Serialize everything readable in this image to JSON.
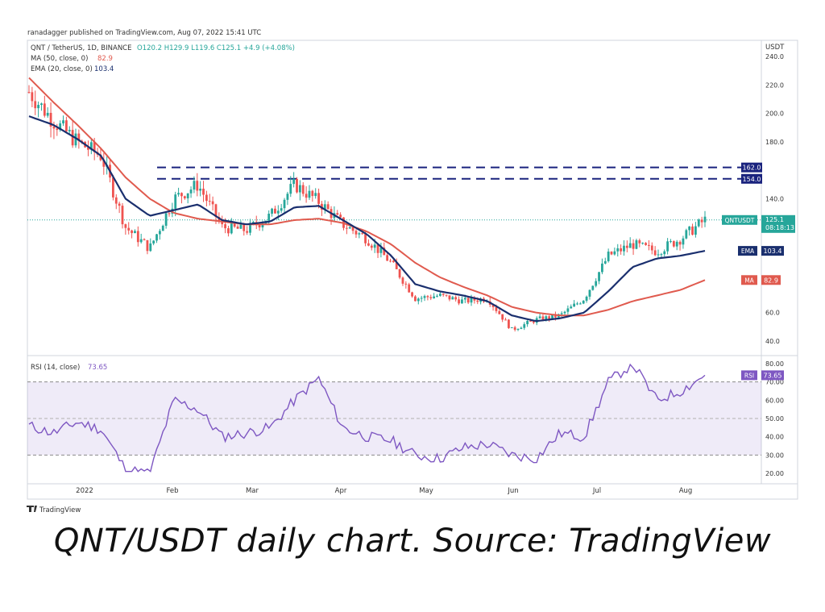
{
  "header": {
    "published": "ranadagger published on TradingView.com, Aug 07, 2022 15:41 UTC",
    "symbol_line": "QNT / TetherUS, 1D, BINANCE",
    "ohlc": "O120.2  H129.9  L119.6  C125.1  +4.9 (+4.08%)",
    "ma_legend_label": "MA (50, close, 0)",
    "ma_legend_value": "82.9",
    "ema_legend_label": "EMA (20, close, 0)",
    "ema_legend_value": "103.4",
    "rsi_legend_label": "RSI (14, close)",
    "rsi_legend_value": "73.65"
  },
  "axis": {
    "currency": "USDT",
    "price_ticks": [
      "240.0",
      "220.0",
      "200.0",
      "180.0",
      "140.0",
      "60.0",
      "40.0"
    ],
    "rsi_ticks": [
      "80.00",
      "70.00",
      "60.00",
      "50.00",
      "40.00",
      "30.00",
      "20.00"
    ],
    "months": [
      "2022",
      "Feb",
      "Mar",
      "Apr",
      "May",
      "Jun",
      "Jul",
      "Aug"
    ]
  },
  "badges": {
    "level_162": "162.0",
    "level_154": "154.0",
    "symbol": "QNTUSDT",
    "last": "125.1",
    "countdown": "08:18:13",
    "ema_tag": "EMA",
    "ema_value": "103.4",
    "ma_tag": "MA",
    "ma_value": "82.9",
    "rsi_tag": "RSI",
    "rsi_value": "73.65"
  },
  "logo_text": "TradingView",
  "caption": "QNT/USDT daily chart. Source: TradingView",
  "colors": {
    "up": "#26a69a",
    "down": "#ef5350",
    "ema": "#1a2f6e",
    "ma": "#e05a4e",
    "rsi": "#7e57c2",
    "level": "#1a237e"
  },
  "chart_data": {
    "type": "line",
    "title": "QNT / TetherUS, 1D, BINANCE",
    "xlabel": "",
    "ylabel": "USDT",
    "ylim": [
      30,
      243
    ],
    "x": [
      "Jan",
      "Jan",
      "Jan",
      "Jan",
      "Feb",
      "Feb",
      "Feb",
      "Feb",
      "Mar",
      "Mar",
      "Mar",
      "Mar",
      "Apr",
      "Apr",
      "Apr",
      "Apr",
      "May",
      "May",
      "May",
      "May",
      "Jun",
      "Jun",
      "Jun",
      "Jun",
      "Jul",
      "Jul",
      "Jul",
      "Jul",
      "Aug"
    ],
    "series": [
      {
        "name": "QNT / TetherUS",
        "values": [
          215,
          195,
          180,
          170,
          120,
          105,
          140,
          150,
          120,
          118,
          128,
          150,
          138,
          122,
          112,
          95,
          70,
          72,
          68,
          70,
          48,
          55,
          58,
          70,
          100,
          108,
          103,
          112,
          125.1
        ]
      },
      {
        "name": "EMA (20, close, 0)",
        "values": [
          198,
          192,
          182,
          170,
          140,
          128,
          132,
          136,
          125,
          122,
          124,
          134,
          135,
          125,
          115,
          100,
          80,
          75,
          72,
          68,
          58,
          54,
          56,
          60,
          75,
          92,
          98,
          100,
          103.4
        ]
      },
      {
        "name": "MA (50, close, 0)",
        "values": [
          225,
          208,
          192,
          175,
          155,
          140,
          130,
          126,
          124,
          122,
          122,
          125,
          126,
          123,
          117,
          108,
          95,
          85,
          78,
          72,
          64,
          60,
          58,
          58,
          62,
          68,
          72,
          76,
          82.9
        ]
      }
    ],
    "horizontal_levels": [
      162.0,
      154.0
    ],
    "rsi": {
      "name": "RSI (14, close)",
      "ylim": [
        15,
        82
      ],
      "bands": [
        30,
        50,
        70
      ],
      "values": [
        46,
        42,
        48,
        44,
        22,
        20,
        60,
        55,
        40,
        42,
        45,
        60,
        72,
        45,
        40,
        38,
        30,
        28,
        34,
        36,
        30,
        28,
        42,
        40,
        70,
        80,
        60,
        65,
        73.65
      ]
    }
  }
}
